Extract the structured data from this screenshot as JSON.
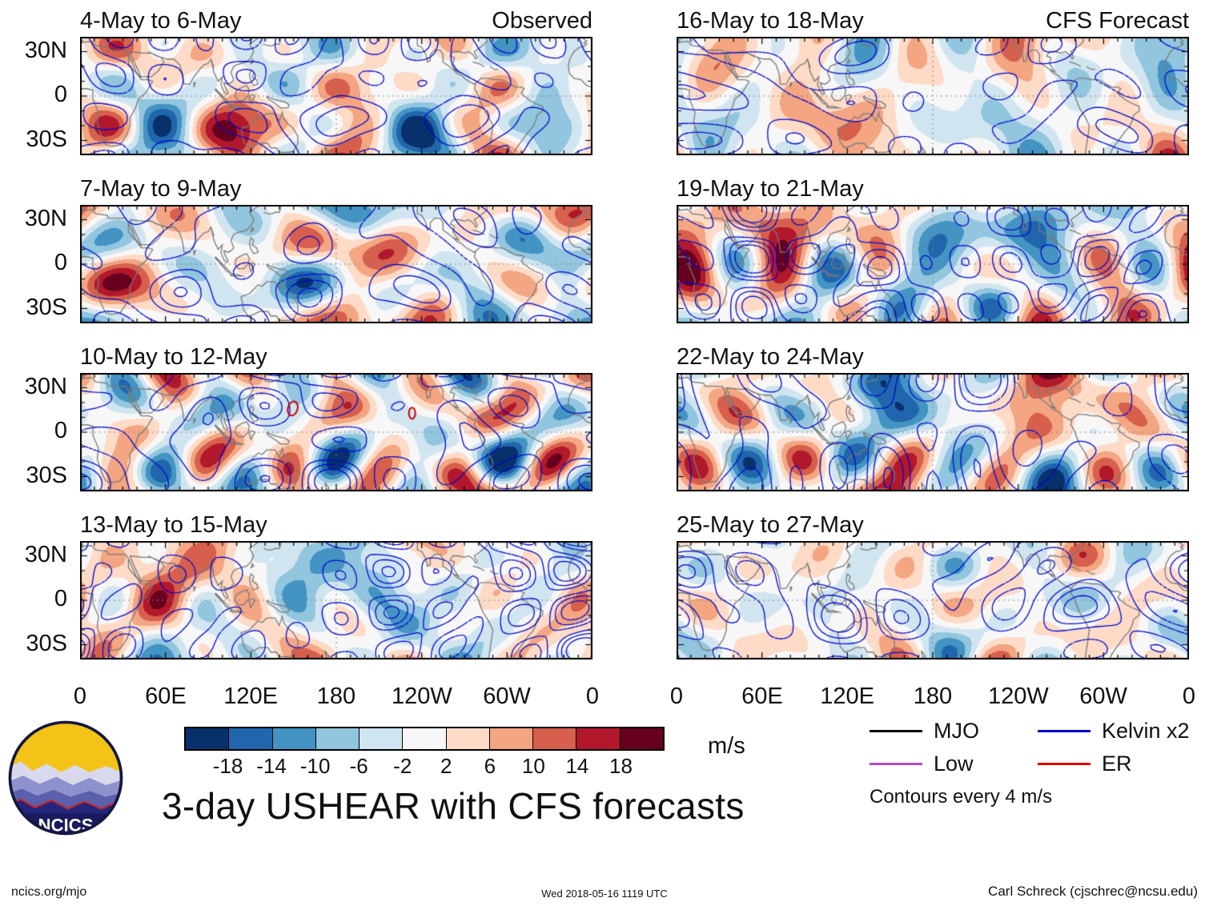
{
  "columns": {
    "left_label": "Observed",
    "right_label": "CFS Forecast"
  },
  "panels": {
    "left": [
      {
        "title": "4-May to 6-May"
      },
      {
        "title": "7-May to 9-May"
      },
      {
        "title": "10-May to 12-May"
      },
      {
        "title": "13-May to 15-May"
      }
    ],
    "right": [
      {
        "title": "16-May to 18-May"
      },
      {
        "title": "19-May to 21-May"
      },
      {
        "title": "22-May to 24-May"
      },
      {
        "title": "25-May to 27-May"
      }
    ]
  },
  "axes": {
    "y_ticks": [
      "30N",
      "0",
      "30S"
    ],
    "x_ticks": [
      "0",
      "60E",
      "120E",
      "180",
      "120W",
      "60W",
      "0"
    ]
  },
  "colorbar": {
    "ticks": [
      "-18",
      "-14",
      "-10",
      "-6",
      "-2",
      "2",
      "6",
      "10",
      "14",
      "18"
    ],
    "unit": "m/s",
    "colors": [
      "#08306b",
      "#2166ac",
      "#4393c3",
      "#92c5de",
      "#d1e5f0",
      "#f7f7f7",
      "#fddbc7",
      "#f4a582",
      "#d6604d",
      "#b2182b",
      "#67001f"
    ]
  },
  "legend": {
    "entries": [
      {
        "label": "MJO",
        "color": "#000000"
      },
      {
        "label": "Kelvin x2",
        "color": "#0000cd"
      },
      {
        "label": "Low",
        "color": "#b04fc0"
      },
      {
        "label": "ER",
        "color": "#dd0000"
      }
    ],
    "note": "Contours every 4 m/s"
  },
  "logo": {
    "text": "NCICS"
  },
  "title": "3-day USHEAR with CFS forecasts",
  "footer": {
    "left": "ncics.org/mjo",
    "center": "Wed 2018-05-16 1119 UTC",
    "right": "Carl Schreck (cjschrec@ncsu.edu)"
  },
  "chart_data": {
    "type": "heatmap",
    "title": "3-day USHEAR with CFS forecasts",
    "unit": "m/s",
    "columns": [
      {
        "label": "Observed",
        "panels": [
          "4-May to 6-May",
          "7-May to 9-May",
          "10-May to 12-May",
          "13-May to 15-May"
        ]
      },
      {
        "label": "CFS Forecast",
        "panels": [
          "16-May to 18-May",
          "19-May to 21-May",
          "22-May to 24-May",
          "25-May to 27-May"
        ]
      }
    ],
    "x_axis": {
      "ticks": [
        "0",
        "60E",
        "120E",
        "180",
        "120W",
        "60W",
        "0"
      ],
      "range_deg": [
        0,
        360
      ]
    },
    "y_axis": {
      "ticks": [
        "30N",
        "0",
        "30S"
      ],
      "range_deg": [
        -40,
        40
      ]
    },
    "colorbar": {
      "levels": [
        -18,
        -14,
        -10,
        -6,
        -2,
        2,
        6,
        10,
        14,
        18
      ],
      "unit": "m/s"
    },
    "contours": {
      "note": "Contours every 4 m/s",
      "series": [
        "MJO",
        "Low",
        "Kelvin x2",
        "ER"
      ]
    },
    "legend_position": "bottom-right",
    "grid": false
  }
}
